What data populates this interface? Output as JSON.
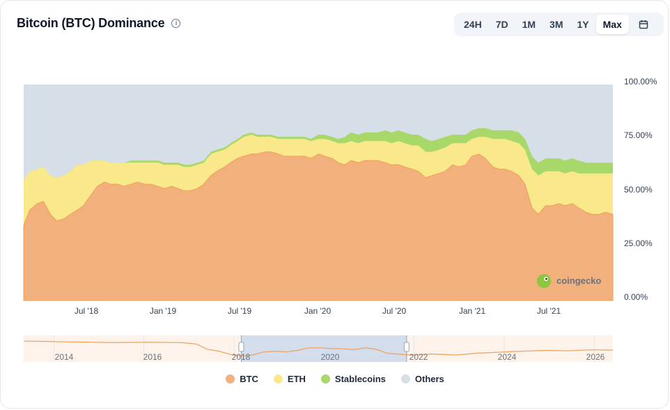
{
  "header": {
    "title": "Bitcoin (BTC) Dominance",
    "info_icon": "info-icon",
    "tabs": [
      "24H",
      "7D",
      "1M",
      "3M",
      "1Y",
      "Max"
    ],
    "active_tab": "Max",
    "calendar_icon": "calendar-icon"
  },
  "watermark": "coingecko",
  "colors": {
    "btc": "#F2B07C",
    "btc_line": "#F0A05A",
    "eth": "#F9E98A",
    "stablecoins": "#A8D86A",
    "others": "#D6DEE8",
    "navigator_selection": "#D4DDEC"
  },
  "chart_data": {
    "type": "area",
    "stacked": true,
    "x": [
      "2018-03-01",
      "2018-03-15",
      "2018-04-01",
      "2018-04-15",
      "2018-05-01",
      "2018-05-15",
      "2018-06-01",
      "2018-06-15",
      "2018-07-01",
      "2018-07-15",
      "2018-08-01",
      "2018-08-15",
      "2018-09-01",
      "2018-09-15",
      "2018-10-01",
      "2018-10-15",
      "2018-11-01",
      "2018-11-15",
      "2018-12-01",
      "2018-12-15",
      "2019-01-01",
      "2019-01-15",
      "2019-02-01",
      "2019-02-15",
      "2019-03-01",
      "2019-03-15",
      "2019-04-01",
      "2019-04-15",
      "2019-05-01",
      "2019-05-15",
      "2019-06-01",
      "2019-06-15",
      "2019-07-01",
      "2019-07-15",
      "2019-08-01",
      "2019-08-15",
      "2019-09-01",
      "2019-09-15",
      "2019-10-01",
      "2019-10-15",
      "2019-11-01",
      "2019-11-15",
      "2019-12-01",
      "2019-12-15",
      "2020-01-01",
      "2020-01-15",
      "2020-02-01",
      "2020-02-15",
      "2020-03-01",
      "2020-03-15",
      "2020-04-01",
      "2020-04-15",
      "2020-05-01",
      "2020-05-15",
      "2020-06-01",
      "2020-06-15",
      "2020-07-01",
      "2020-07-15",
      "2020-08-01",
      "2020-08-15",
      "2020-09-01",
      "2020-09-15",
      "2020-10-01",
      "2020-10-15",
      "2020-11-01",
      "2020-11-15",
      "2020-12-01",
      "2020-12-15",
      "2021-01-01",
      "2021-01-15",
      "2021-02-01",
      "2021-02-15",
      "2021-03-01",
      "2021-03-15",
      "2021-04-01",
      "2021-04-15",
      "2021-05-01",
      "2021-05-15",
      "2021-06-01",
      "2021-06-15",
      "2021-07-01",
      "2021-07-15",
      "2021-08-01",
      "2021-08-15",
      "2021-09-01",
      "2021-09-15",
      "2021-10-01",
      "2021-10-15",
      "2021-11-01"
    ],
    "series": [
      {
        "name": "BTC",
        "values": [
          35,
          42,
          45,
          46,
          40,
          37,
          38,
          40,
          42,
          44,
          49,
          53,
          55,
          54,
          54,
          53,
          54,
          55,
          54,
          54,
          53,
          52,
          53,
          52,
          51,
          51,
          52,
          54,
          58,
          60,
          62,
          64,
          66,
          67,
          68,
          68,
          69,
          69,
          68,
          67,
          67,
          67,
          67,
          66,
          68,
          67,
          66,
          64,
          63,
          65,
          64,
          65,
          65,
          65,
          64,
          63,
          63,
          62,
          61,
          60,
          57,
          58,
          59,
          60,
          63,
          62,
          63,
          67,
          68,
          66,
          62,
          61,
          61,
          60,
          58,
          54,
          43,
          40,
          44,
          44,
          45,
          44,
          45,
          43,
          41,
          40,
          40,
          41,
          40
        ]
      },
      {
        "name": "ETH",
        "values": [
          21,
          18,
          16,
          16,
          18,
          20,
          20,
          20,
          21,
          19,
          16,
          12,
          10,
          10,
          10,
          11,
          10,
          9,
          10,
          10,
          11,
          11,
          10,
          11,
          11,
          11,
          11,
          10,
          10,
          9,
          8,
          8,
          8,
          9,
          9,
          8,
          7,
          7,
          7,
          8,
          8,
          8,
          8,
          8,
          7,
          8,
          8,
          9,
          10,
          9,
          9,
          9,
          9,
          9,
          10,
          10,
          11,
          11,
          11,
          12,
          12,
          11,
          11,
          11,
          10,
          11,
          10,
          8,
          8,
          10,
          13,
          14,
          14,
          14,
          15,
          16,
          18,
          18,
          16,
          16,
          15,
          15,
          15,
          16,
          18,
          19,
          19,
          18,
          19
        ]
      },
      {
        "name": "Stablecoins",
        "values": [
          0,
          0,
          0,
          0,
          0,
          0,
          0,
          0,
          0,
          0,
          0,
          0,
          0,
          0,
          0,
          0,
          1,
          1,
          1,
          1,
          1,
          1,
          1,
          1,
          1,
          1,
          1,
          1,
          1,
          1,
          1,
          1,
          1,
          1,
          1,
          1,
          1,
          1,
          1,
          1,
          1,
          1,
          1,
          1,
          2,
          2,
          2,
          2,
          3,
          4,
          4,
          4,
          4,
          4,
          5,
          5,
          5,
          5,
          5,
          5,
          6,
          5,
          5,
          5,
          4,
          4,
          4,
          4,
          4,
          4,
          4,
          4,
          4,
          5,
          5,
          5,
          6,
          6,
          6,
          6,
          6,
          6,
          6,
          6,
          5,
          5,
          5,
          5,
          5
        ]
      },
      {
        "name": "Others",
        "values": [
          44,
          40,
          39,
          38,
          42,
          43,
          42,
          40,
          37,
          37,
          35,
          35,
          35,
          36,
          36,
          36,
          35,
          35,
          35,
          35,
          35,
          36,
          36,
          36,
          37,
          37,
          36,
          35,
          31,
          30,
          29,
          27,
          25,
          23,
          22,
          23,
          23,
          23,
          24,
          24,
          24,
          24,
          24,
          25,
          23,
          23,
          24,
          25,
          24,
          22,
          23,
          22,
          22,
          22,
          21,
          22,
          21,
          22,
          23,
          23,
          25,
          26,
          25,
          24,
          23,
          23,
          23,
          21,
          20,
          20,
          21,
          21,
          21,
          21,
          22,
          25,
          33,
          36,
          34,
          34,
          34,
          35,
          34,
          35,
          36,
          36,
          36,
          36,
          36
        ]
      }
    ],
    "x_ticks": [
      "Jul '18",
      "Jan '19",
      "Jul '19",
      "Jan '20",
      "Jul '20",
      "Jan '21",
      "Jul '21"
    ],
    "y_ticks": [
      "0.00%",
      "25.00%",
      "50.00%",
      "75.00%",
      "100.00%"
    ],
    "ylim": [
      0,
      100
    ],
    "legend_position": "bottom",
    "legend": [
      "BTC",
      "ETH",
      "Stablecoins",
      "Others"
    ],
    "navigator": {
      "years": [
        "2014",
        "2016",
        "2018",
        "2020",
        "2022",
        "2024",
        "2026"
      ],
      "x": [
        "2013-05",
        "2013-11",
        "2014-05",
        "2014-11",
        "2015-05",
        "2015-11",
        "2016-05",
        "2016-11",
        "2017-03",
        "2017-06",
        "2017-09",
        "2017-12",
        "2018-03",
        "2018-06",
        "2018-09",
        "2018-12",
        "2019-03",
        "2019-06",
        "2019-09",
        "2019-12",
        "2020-03",
        "2020-06",
        "2020-09",
        "2020-12",
        "2021-03",
        "2021-06",
        "2021-09",
        "2021-12",
        "2022-06",
        "2022-12",
        "2023-06",
        "2023-12",
        "2024-06",
        "2024-12",
        "2025-06",
        "2025-12",
        "2026-06"
      ],
      "btc": [
        94,
        93,
        91,
        90,
        88,
        89,
        89,
        88,
        83,
        62,
        55,
        42,
        36,
        40,
        52,
        54,
        52,
        58,
        68,
        68,
        65,
        64,
        61,
        68,
        62,
        46,
        43,
        40,
        44,
        40,
        47,
        51,
        55,
        58,
        56,
        60,
        59
      ],
      "selection": [
        "2018-03",
        "2021-11"
      ]
    }
  }
}
